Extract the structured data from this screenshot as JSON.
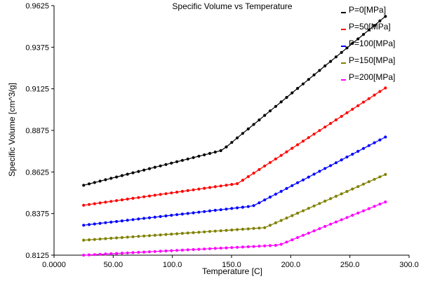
{
  "chart_data": {
    "type": "line",
    "title": "Specific Volume vs Temperature",
    "xlabel": "Temperature [C]",
    "ylabel": "Specific Volume [cm^3/g]",
    "xlim": [
      0,
      300
    ],
    "ylim": [
      0.8125,
      0.9625
    ],
    "x_ticks": [
      0,
      50,
      100,
      150,
      200,
      250,
      300
    ],
    "x_tick_labels": [
      "0.0000",
      "50.00",
      "100.0",
      "150.0",
      "200.0",
      "250.0",
      "300.0"
    ],
    "y_ticks": [
      0.8125,
      0.8375,
      0.8625,
      0.8875,
      0.9125,
      0.9375,
      0.9625
    ],
    "y_tick_labels": [
      "0.8125",
      "0.8375",
      "0.8625",
      "0.8875",
      "0.9125",
      "0.9375",
      "0.9625"
    ],
    "grid": false,
    "legend_position": "top-right",
    "series": [
      {
        "name": "P=0[MPa]",
        "color": "#000000",
        "x_start": 25,
        "x_end": 280,
        "points": 56,
        "segments": [
          {
            "x": [
              25,
              142
            ],
            "y": [
              0.8545,
              0.8755
            ]
          },
          {
            "x": [
              142,
              280
            ],
            "y": [
              0.8755,
              0.956
            ]
          }
        ]
      },
      {
        "name": "P=50[MPa]",
        "color": "#ff0000",
        "x_start": 25,
        "x_end": 280,
        "points": 56,
        "segments": [
          {
            "x": [
              25,
              155
            ],
            "y": [
              0.8425,
              0.8555
            ]
          },
          {
            "x": [
              155,
              280
            ],
            "y": [
              0.8555,
              0.913
            ]
          }
        ]
      },
      {
        "name": "P=100[MPa]",
        "color": "#0000ff",
        "x_start": 25,
        "x_end": 280,
        "points": 56,
        "segments": [
          {
            "x": [
              25,
              168
            ],
            "y": [
              0.8305,
              0.842
            ]
          },
          {
            "x": [
              168,
              280
            ],
            "y": [
              0.842,
              0.8835
            ]
          }
        ]
      },
      {
        "name": "P=150[MPa]",
        "color": "#808000",
        "x_start": 25,
        "x_end": 280,
        "points": 56,
        "segments": [
          {
            "x": [
              25,
              178
            ],
            "y": [
              0.8215,
              0.829
            ]
          },
          {
            "x": [
              178,
              280
            ],
            "y": [
              0.829,
              0.861
            ]
          }
        ]
      },
      {
        "name": "P=200[MPa]",
        "color": "#ff00ff",
        "x_start": 25,
        "x_end": 280,
        "points": 56,
        "segments": [
          {
            "x": [
              25,
              190
            ],
            "y": [
              0.8125,
              0.8185
            ]
          },
          {
            "x": [
              190,
              280
            ],
            "y": [
              0.8185,
              0.8445
            ]
          }
        ]
      }
    ]
  }
}
